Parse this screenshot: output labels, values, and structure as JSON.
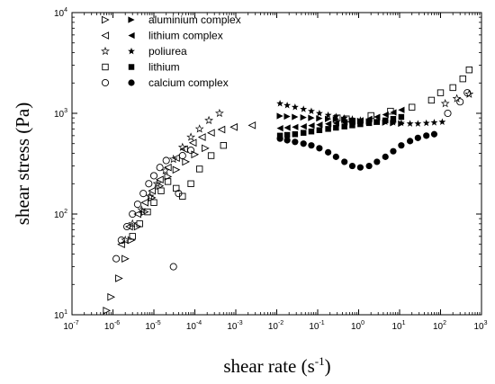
{
  "chart_data": {
    "type": "scatter",
    "xlabel": "shear rate (s-1)",
    "xlabel_parts": [
      "shear rate (s",
      "-1",
      ")"
    ],
    "ylabel": "shear stress (Pa)",
    "xscale": "log",
    "yscale": "log",
    "xlim": [
      1e-07,
      1000
    ],
    "ylim": [
      10,
      10000
    ],
    "x_tick_labels": [
      {
        "base": "10",
        "exp": "-7"
      },
      {
        "base": "10",
        "exp": "-6"
      },
      {
        "base": "10",
        "exp": "-5"
      },
      {
        "base": "10",
        "exp": "-4"
      },
      {
        "base": "10",
        "exp": "-3"
      },
      {
        "base": "10",
        "exp": "-2"
      },
      {
        "base": "10",
        "exp": "-1"
      },
      {
        "base": "10",
        "exp": "0"
      },
      {
        "base": "10",
        "exp": "1"
      },
      {
        "base": "10",
        "exp": "2"
      },
      {
        "base": "10",
        "exp": "3"
      }
    ],
    "y_tick_labels": [
      {
        "base": "10",
        "exp": "1"
      },
      {
        "base": "10",
        "exp": "2"
      },
      {
        "base": "10",
        "exp": "3"
      },
      {
        "base": "10",
        "exp": "4"
      }
    ],
    "grid": false,
    "legend_position": "top-left",
    "series": [
      {
        "name": "aluminium complex",
        "marker": "triangle-right",
        "group": "open",
        "points": [
          [
            7e-07,
            11
          ],
          [
            9e-07,
            15
          ],
          [
            1.4e-06,
            23
          ],
          [
            2e-06,
            36
          ],
          [
            2.8e-06,
            55
          ],
          [
            4e-06,
            75
          ],
          [
            6e-06,
            105
          ],
          [
            9e-06,
            145
          ],
          [
            1.4e-05,
            190
          ],
          [
            2.2e-05,
            235
          ],
          [
            3.5e-05,
            275
          ],
          [
            6e-05,
            330
          ],
          [
            0.0001,
            390
          ],
          [
            0.00018,
            450
          ]
        ]
      },
      {
        "name": "aluminium complex",
        "marker": "triangle-right",
        "group": "filled",
        "points": [
          [
            0.012,
            940
          ],
          [
            0.018,
            930
          ],
          [
            0.028,
            920
          ],
          [
            0.045,
            910
          ],
          [
            0.07,
            900
          ],
          [
            0.11,
            890
          ],
          [
            0.18,
            880
          ],
          [
            0.28,
            870
          ],
          [
            0.45,
            860
          ],
          [
            0.7,
            850
          ],
          [
            1.1,
            840
          ],
          [
            1.8,
            830
          ],
          [
            2.8,
            820
          ],
          [
            4.5,
            810
          ],
          [
            7,
            800
          ],
          [
            11,
            790
          ]
        ]
      },
      {
        "name": "lithium complex",
        "marker": "triangle-left",
        "group": "open",
        "points": [
          [
            1.6e-06,
            50
          ],
          [
            2.5e-06,
            75
          ],
          [
            4e-06,
            100
          ],
          [
            6e-06,
            130
          ],
          [
            9e-06,
            170
          ],
          [
            1.4e-05,
            220
          ],
          [
            2.2e-05,
            290
          ],
          [
            3.5e-05,
            360
          ],
          [
            5.5e-05,
            440
          ],
          [
            9e-05,
            510
          ],
          [
            0.00015,
            580
          ],
          [
            0.00025,
            640
          ],
          [
            0.00045,
            690
          ],
          [
            0.0009,
            730
          ],
          [
            0.0025,
            760
          ]
        ]
      },
      {
        "name": "lithium complex",
        "marker": "triangle-left",
        "group": "filled",
        "points": [
          [
            0.012,
            710
          ],
          [
            0.018,
            720
          ],
          [
            0.028,
            730
          ],
          [
            0.045,
            740
          ],
          [
            0.07,
            755
          ],
          [
            0.11,
            770
          ],
          [
            0.18,
            785
          ],
          [
            0.28,
            800
          ],
          [
            0.45,
            815
          ],
          [
            0.7,
            830
          ],
          [
            1.1,
            850
          ],
          [
            1.8,
            880
          ],
          [
            2.8,
            920
          ],
          [
            4.5,
            970
          ],
          [
            7,
            1020
          ],
          [
            11,
            1080
          ]
        ]
      },
      {
        "name": "poliurea",
        "marker": "star",
        "group": "open",
        "points": [
          [
            2e-06,
            55
          ],
          [
            3e-06,
            80
          ],
          [
            5e-06,
            110
          ],
          [
            8e-06,
            150
          ],
          [
            1.2e-05,
            200
          ],
          [
            1.9e-05,
            270
          ],
          [
            3e-05,
            350
          ],
          [
            5e-05,
            460
          ],
          [
            8e-05,
            580
          ],
          [
            0.00013,
            700
          ],
          [
            0.00022,
            850
          ],
          [
            0.0004,
            1000
          ]
        ]
      },
      {
        "name": "poliurea",
        "marker": "star",
        "group": "filled",
        "points": [
          [
            0.012,
            1250
          ],
          [
            0.018,
            1200
          ],
          [
            0.028,
            1150
          ],
          [
            0.045,
            1100
          ],
          [
            0.07,
            1050
          ],
          [
            0.11,
            1000
          ],
          [
            0.18,
            960
          ],
          [
            0.28,
            930
          ],
          [
            0.45,
            900
          ],
          [
            0.7,
            880
          ],
          [
            1.1,
            860
          ],
          [
            1.8,
            840
          ],
          [
            2.8,
            830
          ],
          [
            4.5,
            820
          ],
          [
            7,
            810
          ],
          [
            11,
            800
          ],
          [
            18,
            790
          ],
          [
            28,
            790
          ],
          [
            45,
            800
          ],
          [
            70,
            810
          ],
          [
            110,
            820
          ]
        ]
      },
      {
        "name": "poliurea",
        "marker": "star",
        "group": "open",
        "points": [
          [
            130,
            1250
          ],
          [
            250,
            1400
          ],
          [
            500,
            1550
          ]
        ]
      },
      {
        "name": "lithium",
        "marker": "square",
        "group": "open",
        "points": [
          [
            3e-06,
            60
          ],
          [
            4.5e-06,
            80
          ],
          [
            7e-06,
            105
          ],
          [
            1e-05,
            130
          ],
          [
            1.5e-05,
            170
          ],
          [
            2.2e-05,
            210
          ],
          [
            3.5e-05,
            180
          ],
          [
            5e-05,
            150
          ],
          [
            8e-05,
            200
          ],
          [
            0.00013,
            280
          ],
          [
            0.00025,
            380
          ],
          [
            0.0005,
            480
          ]
        ]
      },
      {
        "name": "lithium",
        "marker": "square",
        "group": "filled",
        "points": [
          [
            0.012,
            600
          ],
          [
            0.018,
            610
          ],
          [
            0.028,
            620
          ],
          [
            0.045,
            640
          ],
          [
            0.07,
            660
          ],
          [
            0.11,
            680
          ],
          [
            0.18,
            700
          ],
          [
            0.28,
            720
          ],
          [
            0.45,
            740
          ],
          [
            0.7,
            760
          ],
          [
            1.1,
            780
          ],
          [
            1.8,
            800
          ],
          [
            2.8,
            820
          ],
          [
            4.5,
            850
          ],
          [
            7,
            880
          ],
          [
            11,
            920
          ]
        ]
      },
      {
        "name": "lithium",
        "marker": "square",
        "group": "open",
        "points": [
          [
            0.3,
            900
          ],
          [
            0.5,
            880
          ],
          [
            2,
            950
          ],
          [
            6,
            1050
          ],
          [
            20,
            1150
          ],
          [
            60,
            1350
          ],
          [
            100,
            1600
          ],
          [
            200,
            1800
          ],
          [
            350,
            2200
          ],
          [
            500,
            2700
          ]
        ]
      },
      {
        "name": "calcium complex",
        "marker": "circle",
        "group": "open",
        "points": [
          [
            1.2e-06,
            36
          ],
          [
            1.6e-06,
            55
          ],
          [
            2.2e-06,
            75
          ],
          [
            3e-06,
            100
          ],
          [
            4e-06,
            125
          ],
          [
            5.5e-06,
            160
          ],
          [
            7.5e-06,
            200
          ],
          [
            1e-05,
            240
          ],
          [
            1.4e-05,
            290
          ],
          [
            2e-05,
            340
          ],
          [
            3e-05,
            30
          ],
          [
            4e-05,
            160
          ],
          [
            5e-05,
            380
          ],
          [
            8e-05,
            430
          ]
        ]
      },
      {
        "name": "calcium complex",
        "marker": "circle",
        "group": "filled",
        "points": [
          [
            0.012,
            560
          ],
          [
            0.018,
            540
          ],
          [
            0.028,
            520
          ],
          [
            0.045,
            500
          ],
          [
            0.07,
            480
          ],
          [
            0.11,
            450
          ],
          [
            0.18,
            410
          ],
          [
            0.28,
            370
          ],
          [
            0.45,
            330
          ],
          [
            0.7,
            300
          ],
          [
            1.1,
            290
          ],
          [
            1.8,
            300
          ],
          [
            2.8,
            330
          ],
          [
            4.5,
            370
          ],
          [
            7,
            420
          ],
          [
            11,
            480
          ],
          [
            18,
            530
          ],
          [
            28,
            570
          ],
          [
            45,
            600
          ],
          [
            70,
            620
          ]
        ]
      },
      {
        "name": "calcium complex",
        "marker": "circle",
        "group": "open",
        "points": [
          [
            150,
            1000
          ],
          [
            300,
            1300
          ],
          [
            450,
            1600
          ]
        ]
      }
    ],
    "legend": [
      {
        "label": "aluminium complex",
        "open_marker": "triangle-right",
        "filled_marker": "triangle-right"
      },
      {
        "label": "lithium complex",
        "open_marker": "triangle-left",
        "filled_marker": "triangle-left"
      },
      {
        "label": "poliurea",
        "open_marker": "star",
        "filled_marker": "star"
      },
      {
        "label": "lithium",
        "open_marker": "square",
        "filled_marker": "square"
      },
      {
        "label": "calcium complex",
        "open_marker": "circle",
        "filled_marker": "circle"
      }
    ]
  }
}
